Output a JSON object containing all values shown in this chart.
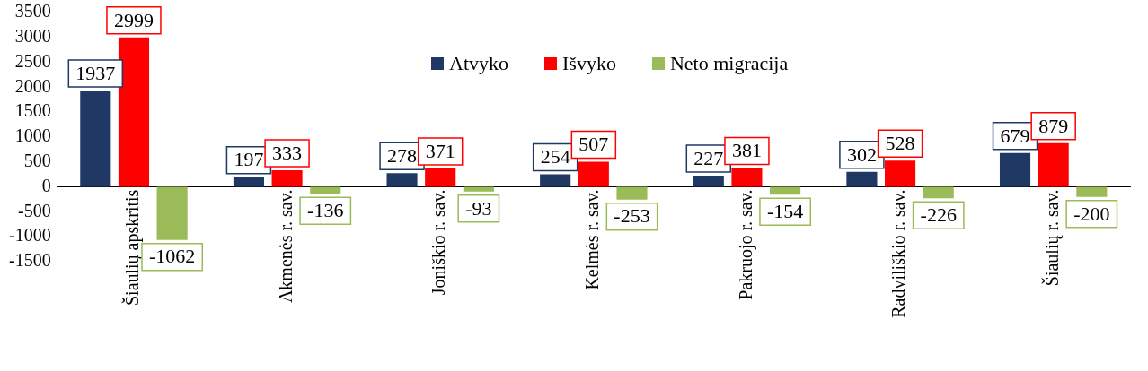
{
  "chart_data": {
    "type": "bar",
    "categories": [
      "Šiaulių apskritis",
      "Akmenės r. sav.",
      "Joniškio r. sav.",
      "Kelmės r. sav.",
      "Pakruojo r. sav.",
      "Radviliškio r. sav.",
      "Šiaulių r. sav."
    ],
    "series": [
      {
        "name": "Atvyko",
        "color": "#1f3864",
        "values": [
          1937,
          197,
          278,
          254,
          227,
          302,
          679
        ]
      },
      {
        "name": "Išvyko",
        "color": "#ff0000",
        "values": [
          2999,
          333,
          371,
          507,
          381,
          528,
          879
        ]
      },
      {
        "name": "Neto migracija",
        "color": "#9bbb59",
        "values": [
          -1062,
          -136,
          -93,
          -253,
          -154,
          -226,
          -200
        ]
      }
    ],
    "ylim": [
      -1500,
      3500
    ],
    "yticks": [
      -1500,
      -1000,
      -500,
      0,
      500,
      1000,
      1500,
      2000,
      2500,
      3000,
      3500
    ],
    "grid": false,
    "legend": "top",
    "data_labels": true
  }
}
